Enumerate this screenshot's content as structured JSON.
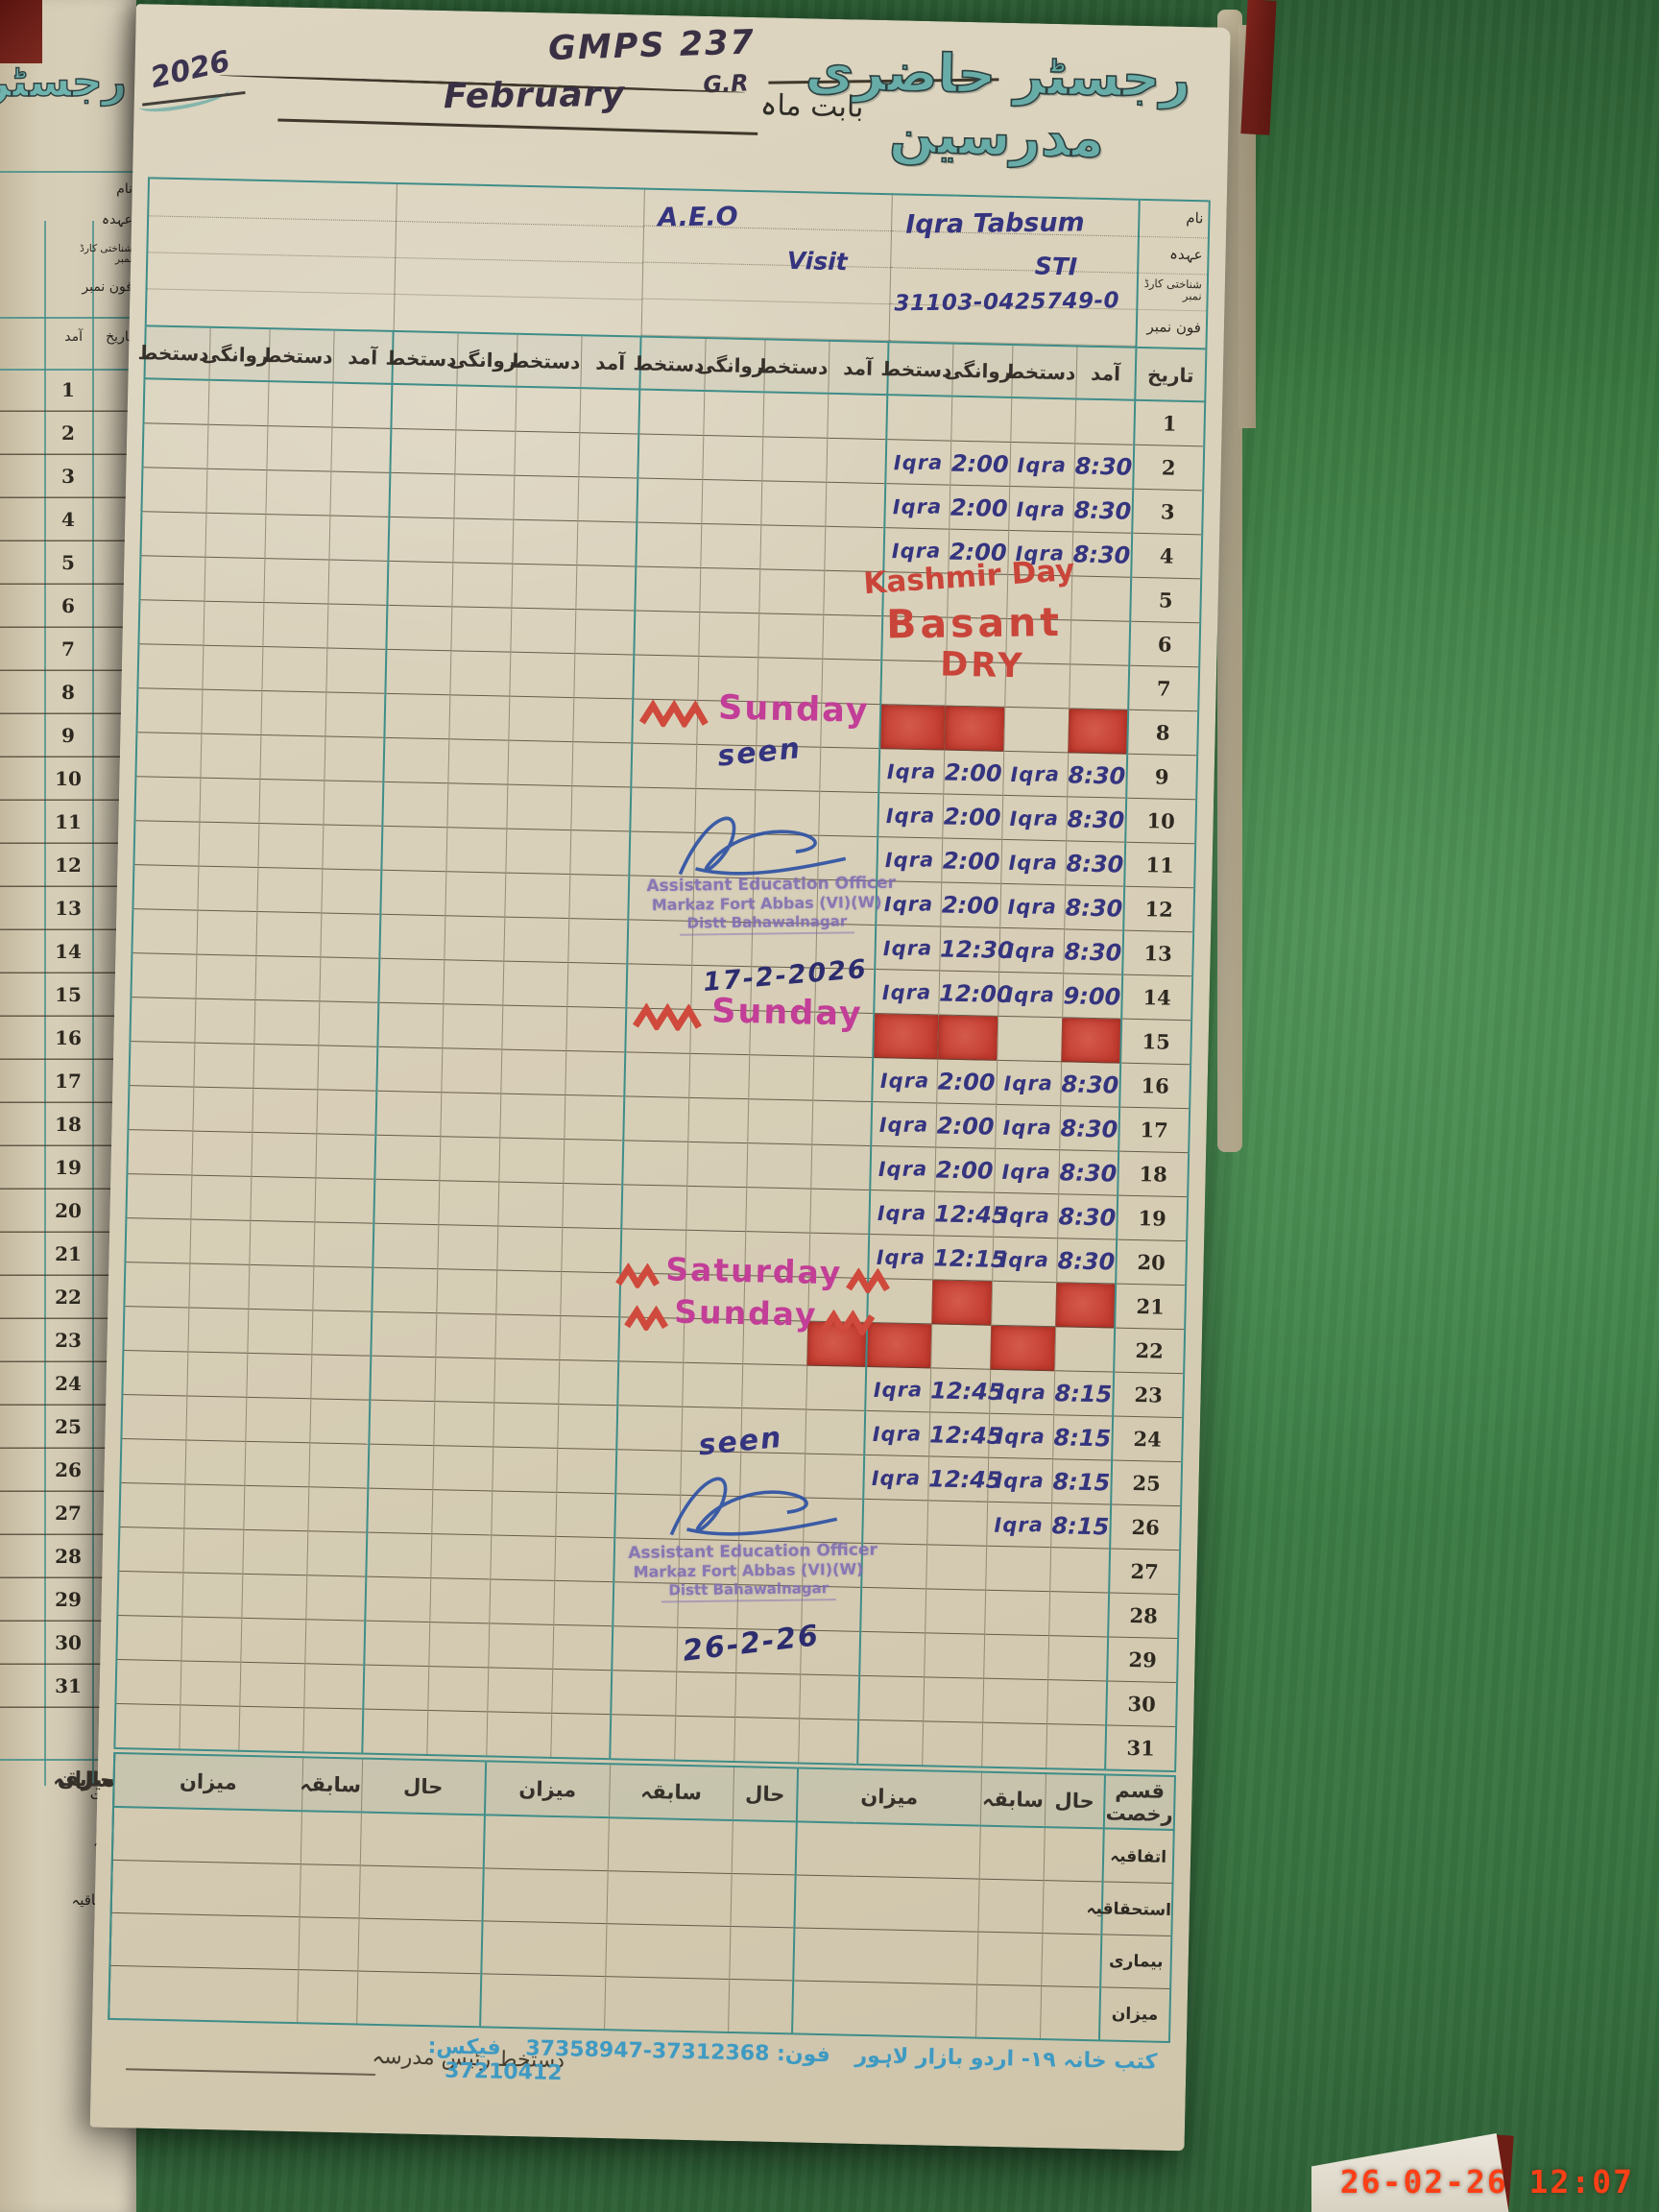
{
  "register": {
    "title_urdu": "رجسٹر حاضری مدرسین",
    "school_code": "GMPS 237",
    "school_code_sub": "G.R",
    "year": "2026",
    "month": "February",
    "month_prefix_urdu": "بابت ماہ"
  },
  "label_column": {
    "name": "نام",
    "designation": "عہدہ",
    "id_card": "شناختی کارڈ نمبر",
    "phone": "فون نمبر",
    "date": "تاریخ"
  },
  "column_headers": {
    "arrival": "آمد",
    "departure": "روانگی",
    "signature": "دستخط"
  },
  "teachers": [
    {
      "name": "Iqra Tabsum",
      "designation": "STI",
      "cnic": "31103-0425749-0"
    },
    {
      "name": "A.E.O",
      "designation": "Visit",
      "cnic": ""
    },
    {
      "name": "",
      "designation": "",
      "cnic": ""
    },
    {
      "name": "",
      "designation": "",
      "cnic": ""
    }
  ],
  "attendance": {
    "signature_name": "Iqra",
    "days": [
      {
        "day": 1
      },
      {
        "day": 2,
        "departure": "2:00",
        "arrival": "8:30"
      },
      {
        "day": 3,
        "departure": "2:00",
        "arrival": "8:30"
      },
      {
        "day": 4,
        "departure": "2:00",
        "arrival": "8:30"
      },
      {
        "day": 5,
        "holiday": "Kashmir Day"
      },
      {
        "day": 6,
        "holiday": "Basant"
      },
      {
        "day": 7,
        "holiday": "DRY"
      },
      {
        "day": 8,
        "weekend": "Sunday",
        "red_cells": [
          0,
          1,
          3
        ]
      },
      {
        "day": 9,
        "departure": "2:00",
        "arrival": "8:30",
        "note": "seen"
      },
      {
        "day": 10,
        "departure": "2:00",
        "arrival": "8:30"
      },
      {
        "day": 11,
        "departure": "2:00",
        "arrival": "8:30"
      },
      {
        "day": 12,
        "departure": "2:00",
        "arrival": "8:30"
      },
      {
        "day": 13,
        "departure": "12:30",
        "arrival": "8:30"
      },
      {
        "day": 14,
        "departure": "12:00",
        "arrival": "9:00"
      },
      {
        "day": 15,
        "weekend": "Sunday",
        "red_cells": [
          0,
          1,
          3
        ]
      },
      {
        "day": 16,
        "departure": "2:00",
        "arrival": "8:30"
      },
      {
        "day": 17,
        "departure": "2:00",
        "arrival": "8:30"
      },
      {
        "day": 18,
        "departure": "2:00",
        "arrival": "8:30"
      },
      {
        "day": 19,
        "departure": "12:45",
        "arrival": "8:30"
      },
      {
        "day": 20,
        "departure": "12:15",
        "arrival": "8:30"
      },
      {
        "day": 21,
        "weekend": "Saturday",
        "red_cells": [
          1,
          3
        ]
      },
      {
        "day": 22,
        "weekend": "Sunday",
        "red_cells": [
          0,
          2
        ],
        "red_cells_prev_block": [
          3
        ]
      },
      {
        "day": 23,
        "departure": "12:45",
        "arrival": "8:15"
      },
      {
        "day": 24,
        "departure": "12:45",
        "arrival": "8:15"
      },
      {
        "day": 25,
        "departure": "12:45",
        "arrival": "8:15",
        "note": "seen"
      },
      {
        "day": 26,
        "arrival": "8:15"
      },
      {
        "day": 27
      },
      {
        "day": 28
      },
      {
        "day": 29
      },
      {
        "day": 30
      },
      {
        "day": 31
      }
    ]
  },
  "stamps": [
    {
      "line1": "Assistant Education Officer",
      "line2": "Markaz Fort Abbas (VI)(W)",
      "line3": "Distt Bahawalnagar",
      "date": "17-2-2026"
    },
    {
      "line1": "Assistant Education Officer",
      "line2": "Markaz Fort Abbas (VI)(W)",
      "line3": "Distt Bahawalnagar",
      "date": "26-2-26"
    }
  ],
  "summary": {
    "leave_type": "قسم رخصت",
    "current": "حال",
    "previous": "سابقہ",
    "total": "میزان",
    "rows": [
      "اتفاقیہ",
      "استحقاقیہ",
      "بیماری",
      "میزان"
    ]
  },
  "footer": {
    "head_signature": "دستخط رئیس مدرسہ",
    "publisher": "کتب خانہ ۱۹- اردو بازار لاہور",
    "phone": "فون: 37312368-37358947",
    "fax": "فیکس: 37210412"
  },
  "camera_timestamp": "26-02-26 12:07"
}
